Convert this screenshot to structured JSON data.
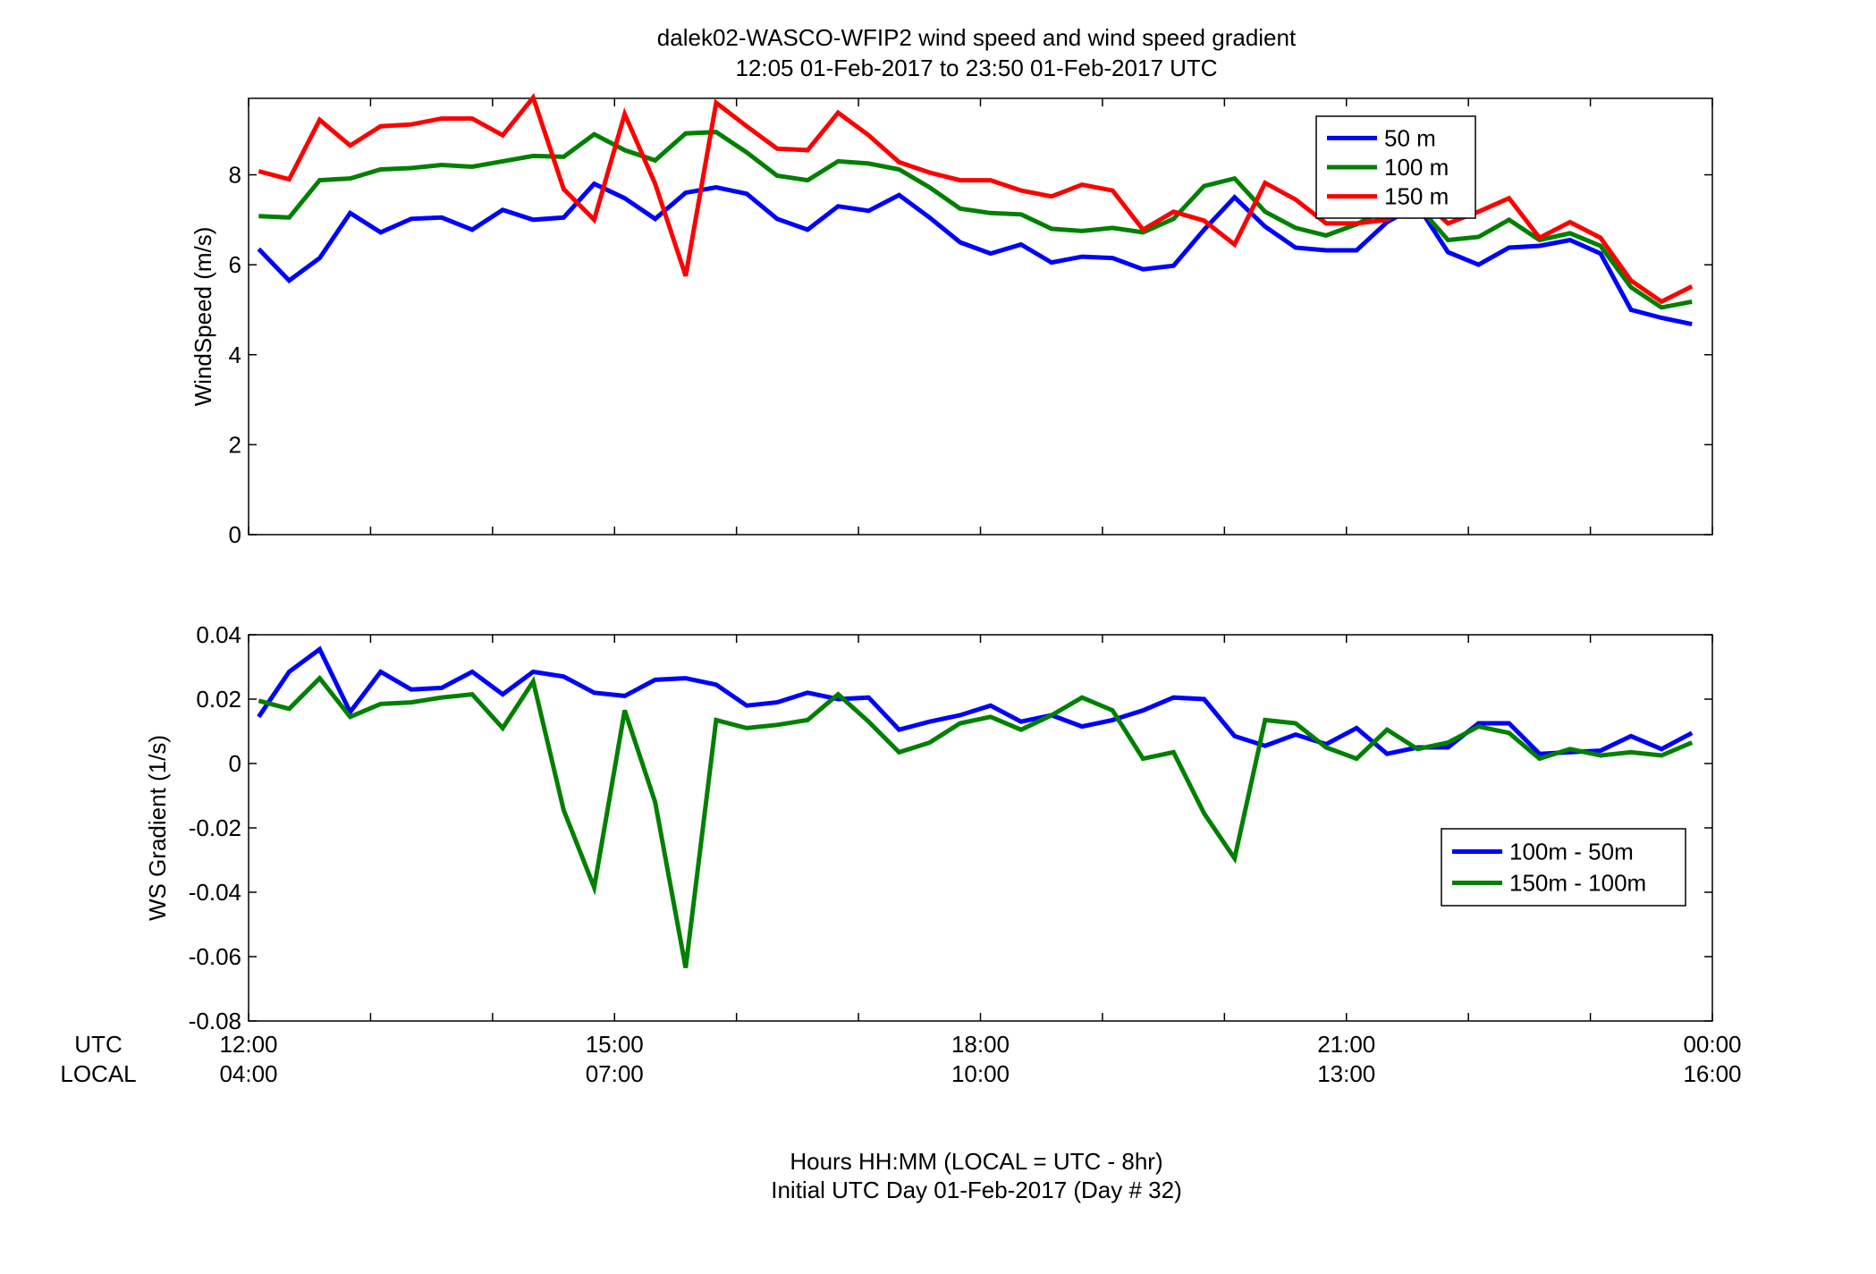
{
  "title_line1": "dalek02-WASCO-WFIP2  wind speed and wind speed gradient",
  "title_line2": "12:05 01-Feb-2017 to 23:50 01-Feb-2017  UTC",
  "row_label_utc": "UTC",
  "row_label_local": "LOCAL",
  "xlabel_line1": "Hours HH:MM  (LOCAL = UTC - 8hr)",
  "xlabel_line2": "Initial UTC Day 01-Feb-2017 (Day # 32)",
  "chart_data": [
    {
      "type": "line",
      "ylabel": "WindSpeed (m/s)",
      "ylim": [
        0,
        9.7
      ],
      "y_ticks": [
        "0",
        "2",
        "4",
        "6",
        "8"
      ],
      "xlim": [
        12.0,
        24.0
      ],
      "x_ticks_utc": [
        "12:00",
        "15:00",
        "18:00",
        "21:00",
        "00:00"
      ],
      "x_ticks_local": [
        "04:00",
        "07:00",
        "10:00",
        "13:00",
        "16:00"
      ],
      "grid": false,
      "legend_position": "top-right",
      "x": [
        12.083,
        12.333,
        12.583,
        12.833,
        13.083,
        13.333,
        13.583,
        13.833,
        14.083,
        14.333,
        14.583,
        14.833,
        15.083,
        15.333,
        15.583,
        15.833,
        16.083,
        16.333,
        16.583,
        16.833,
        17.083,
        17.333,
        17.583,
        17.833,
        18.083,
        18.333,
        18.583,
        18.833,
        19.083,
        19.333,
        19.583,
        19.833,
        20.083,
        20.333,
        20.583,
        20.833,
        21.083,
        21.333,
        21.583,
        21.833,
        22.083,
        22.333,
        22.583,
        22.833,
        23.083,
        23.333,
        23.583,
        23.833
      ],
      "series": [
        {
          "name": "50 m",
          "color": "#0000ff",
          "values": [
            6.35,
            5.65,
            6.15,
            7.15,
            6.72,
            7.02,
            7.05,
            6.78,
            7.22,
            7.0,
            7.05,
            7.8,
            7.48,
            7.02,
            7.6,
            7.72,
            7.58,
            7.02,
            6.78,
            7.3,
            7.2,
            7.55,
            7.05,
            6.5,
            6.25,
            6.45,
            6.05,
            6.18,
            6.15,
            5.9,
            5.98,
            6.78,
            7.5,
            6.85,
            6.38,
            6.32,
            6.32,
            6.95,
            7.32,
            6.28,
            6.0,
            6.38,
            6.42,
            6.55,
            6.25,
            5.0,
            4.82,
            4.68
          ]
        },
        {
          "name": "100 m",
          "color": "#008000",
          "values": [
            7.08,
            7.05,
            7.88,
            7.92,
            8.12,
            8.15,
            8.22,
            8.18,
            8.3,
            8.42,
            8.4,
            8.9,
            8.55,
            8.32,
            8.92,
            8.95,
            8.5,
            7.98,
            7.88,
            8.3,
            8.25,
            8.12,
            7.72,
            7.25,
            7.15,
            7.12,
            6.8,
            6.75,
            6.82,
            6.72,
            7.02,
            7.75,
            7.92,
            7.18,
            6.82,
            6.65,
            6.9,
            7.25,
            7.32,
            6.55,
            6.62,
            7.0,
            6.55,
            6.7,
            6.42,
            5.5,
            5.05,
            5.18
          ]
        },
        {
          "name": "150 m",
          "color": "#ff0000",
          "values": [
            8.08,
            7.9,
            9.22,
            8.65,
            9.08,
            9.12,
            9.25,
            9.25,
            8.88,
            9.72,
            7.68,
            7.0,
            9.35,
            7.8,
            5.75,
            9.6,
            9.08,
            8.58,
            8.55,
            9.38,
            8.88,
            8.28,
            8.05,
            7.88,
            7.88,
            7.65,
            7.52,
            7.78,
            7.65,
            6.78,
            7.18,
            6.98,
            6.45,
            7.82,
            7.45,
            6.92,
            6.92,
            7.0,
            7.52,
            6.92,
            7.18,
            7.48,
            6.6,
            6.95,
            6.6,
            5.65,
            5.18,
            5.52
          ]
        }
      ]
    },
    {
      "type": "line",
      "ylabel": "WS Gradient (1/s)",
      "ylim": [
        -0.08,
        0.04
      ],
      "y_ticks": [
        "-0.08",
        "-0.06",
        "-0.04",
        "-0.02",
        "0",
        "0.02",
        "0.04"
      ],
      "xlim": [
        12.0,
        24.0
      ],
      "x_ticks_utc": [
        "12:00",
        "15:00",
        "18:00",
        "21:00",
        "00:00"
      ],
      "x_ticks_local": [
        "04:00",
        "07:00",
        "10:00",
        "13:00",
        "16:00"
      ],
      "grid": false,
      "legend_position": "right",
      "x": [
        12.083,
        12.333,
        12.583,
        12.833,
        13.083,
        13.333,
        13.583,
        13.833,
        14.083,
        14.333,
        14.583,
        14.833,
        15.083,
        15.333,
        15.583,
        15.833,
        16.083,
        16.333,
        16.583,
        16.833,
        17.083,
        17.333,
        17.583,
        17.833,
        18.083,
        18.333,
        18.583,
        18.833,
        19.083,
        19.333,
        19.583,
        19.833,
        20.083,
        20.333,
        20.583,
        20.833,
        21.083,
        21.333,
        21.583,
        21.833,
        22.083,
        22.333,
        22.583,
        22.833,
        23.083,
        23.333,
        23.583,
        23.833
      ],
      "series": [
        {
          "name": "100m - 50m",
          "color": "#0000ff",
          "values": [
            0.0145,
            0.0285,
            0.0355,
            0.016,
            0.0285,
            0.023,
            0.0235,
            0.0285,
            0.0215,
            0.0285,
            0.027,
            0.022,
            0.021,
            0.026,
            0.0265,
            0.0245,
            0.018,
            0.019,
            0.022,
            0.02,
            0.0205,
            0.0105,
            0.013,
            0.015,
            0.018,
            0.013,
            0.015,
            0.0115,
            0.0135,
            0.0165,
            0.0205,
            0.02,
            0.0085,
            0.0055,
            0.009,
            0.006,
            0.011,
            0.003,
            0.005,
            0.005,
            0.0125,
            0.0125,
            0.003,
            0.0035,
            0.004,
            0.0085,
            0.0045,
            0.0095
          ]
        },
        {
          "name": "150m - 100m",
          "color": "#008000",
          "values": [
            0.0195,
            0.017,
            0.0265,
            0.0145,
            0.0185,
            0.019,
            0.0205,
            0.0215,
            0.011,
            0.0255,
            -0.0145,
            -0.0385,
            0.0165,
            -0.012,
            -0.0635,
            0.0135,
            0.011,
            0.012,
            0.0135,
            0.0215,
            0.013,
            0.0035,
            0.0065,
            0.0125,
            0.0145,
            0.0105,
            0.015,
            0.0205,
            0.0165,
            0.0015,
            0.0035,
            -0.0155,
            -0.0295,
            0.0135,
            0.0125,
            0.005,
            0.0015,
            0.0105,
            0.0045,
            0.0065,
            0.0115,
            0.0095,
            0.0015,
            0.0045,
            0.0025,
            0.0035,
            0.0025,
            0.0065
          ]
        }
      ]
    }
  ]
}
